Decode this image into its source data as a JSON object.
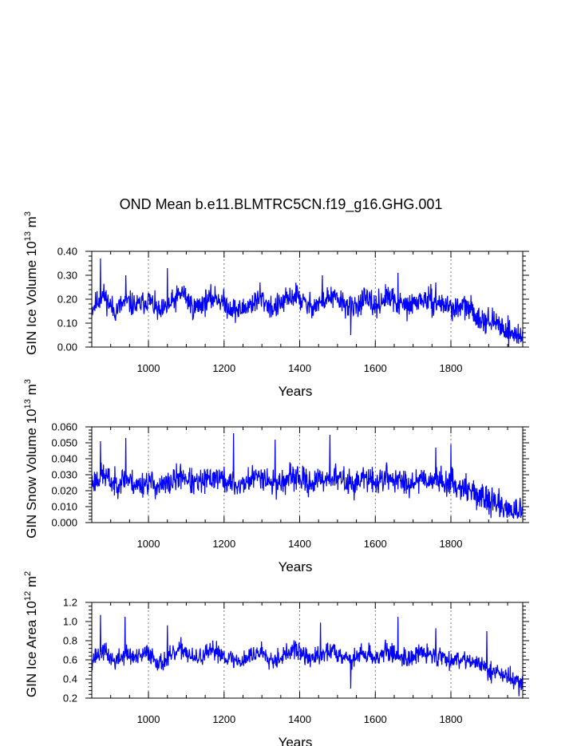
{
  "title": "OND Mean b.e11.BLMTRC5CN.f19_g16.GHG.001",
  "chart_data": [
    {
      "type": "line",
      "title": "OND Mean b.e11.BLMTRC5CN.f19_g16.GHG.001",
      "ylabel": "GIN Ice Volume 10",
      "ylabel_exp": "13",
      "ylabel_unit": "m",
      "ylabel_unit_exp": "3",
      "xlabel": "Years",
      "xlim": [
        850,
        1990
      ],
      "ylim": [
        0.0,
        0.4
      ],
      "xticks": [
        "1000",
        "1200",
        "1400",
        "1600",
        "1800"
      ],
      "yticks": [
        "0.00",
        "0.10",
        "0.20",
        "0.30",
        "0.40"
      ],
      "color": "#0000ff",
      "x_start": 850,
      "x_end": 1990,
      "series": [
        {
          "x_step": 30,
          "values": [
            0.16,
            0.22,
            0.15,
            0.19,
            0.17,
            0.2,
            0.14,
            0.18,
            0.23,
            0.16,
            0.19,
            0.21,
            0.17,
            0.15,
            0.18,
            0.2,
            0.16,
            0.19,
            0.22,
            0.17,
            0.18,
            0.21,
            0.19,
            0.16,
            0.2,
            0.17,
            0.21,
            0.18,
            0.17,
            0.2,
            0.19,
            0.18,
            0.16,
            0.17,
            0.13,
            0.11,
            0.09,
            0.06,
            0.04
          ]
        }
      ],
      "spikes": [
        {
          "x": 873,
          "y": 0.37
        },
        {
          "x": 1050,
          "y": 0.33
        },
        {
          "x": 940,
          "y": 0.3
        },
        {
          "x": 1460,
          "y": 0.3
        },
        {
          "x": 1660,
          "y": 0.31
        },
        {
          "x": 1535,
          "y": 0.05
        },
        {
          "x": 1295,
          "y": 0.27
        },
        {
          "x": 1760,
          "y": 0.27
        },
        {
          "x": 1985,
          "y": 0.02
        }
      ],
      "noise": 0.05,
      "seed": 11
    },
    {
      "type": "line",
      "ylabel": "GIN Snow Volume 10",
      "ylabel_exp": "13",
      "ylabel_unit": "m",
      "ylabel_unit_exp": "3",
      "xlabel": "Years",
      "xlim": [
        850,
        1990
      ],
      "ylim": [
        0.0,
        0.06
      ],
      "xticks": [
        "1000",
        "1200",
        "1400",
        "1600",
        "1800"
      ],
      "yticks": [
        "0.000",
        "0.010",
        "0.020",
        "0.030",
        "0.040",
        "0.050",
        "0.060"
      ],
      "color": "#0000ff",
      "x_start": 850,
      "x_end": 1990,
      "series": [
        {
          "x_step": 30,
          "values": [
            0.025,
            0.03,
            0.024,
            0.028,
            0.023,
            0.026,
            0.022,
            0.025,
            0.03,
            0.024,
            0.026,
            0.029,
            0.025,
            0.023,
            0.027,
            0.03,
            0.024,
            0.026,
            0.029,
            0.025,
            0.026,
            0.029,
            0.027,
            0.024,
            0.028,
            0.025,
            0.029,
            0.026,
            0.025,
            0.028,
            0.027,
            0.026,
            0.024,
            0.022,
            0.017,
            0.014,
            0.011,
            0.008,
            0.006
          ]
        }
      ],
      "spikes": [
        {
          "x": 1225,
          "y": 0.056
        },
        {
          "x": 1480,
          "y": 0.055
        },
        {
          "x": 940,
          "y": 0.053
        },
        {
          "x": 1335,
          "y": 0.052
        },
        {
          "x": 1800,
          "y": 0.049
        },
        {
          "x": 873,
          "y": 0.051
        },
        {
          "x": 1760,
          "y": 0.047
        },
        {
          "x": 1985,
          "y": 0.003
        }
      ],
      "noise": 0.008,
      "seed": 23
    },
    {
      "type": "line",
      "ylabel": "GIN Ice Area 10",
      "ylabel_exp": "12",
      "ylabel_unit": "m",
      "ylabel_unit_exp": "2",
      "xlabel": "Years",
      "xlim": [
        850,
        1990
      ],
      "ylim": [
        0.2,
        1.2
      ],
      "xticks": [
        "1000",
        "1200",
        "1400",
        "1600",
        "1800"
      ],
      "yticks": [
        "0.2",
        "0.4",
        "0.6",
        "0.8",
        "1.0",
        "1.2"
      ],
      "color": "#0000ff",
      "x_start": 850,
      "x_end": 1990,
      "series": [
        {
          "x_step": 30,
          "values": [
            0.6,
            0.7,
            0.58,
            0.66,
            0.61,
            0.68,
            0.56,
            0.63,
            0.72,
            0.6,
            0.65,
            0.7,
            0.62,
            0.58,
            0.64,
            0.69,
            0.6,
            0.65,
            0.71,
            0.62,
            0.63,
            0.7,
            0.66,
            0.6,
            0.68,
            0.62,
            0.69,
            0.64,
            0.62,
            0.67,
            0.65,
            0.63,
            0.6,
            0.62,
            0.55,
            0.5,
            0.46,
            0.4,
            0.36
          ]
        }
      ],
      "spikes": [
        {
          "x": 873,
          "y": 1.07
        },
        {
          "x": 938,
          "y": 1.05
        },
        {
          "x": 1660,
          "y": 1.05
        },
        {
          "x": 1455,
          "y": 0.99
        },
        {
          "x": 1050,
          "y": 0.96
        },
        {
          "x": 1760,
          "y": 0.93
        },
        {
          "x": 1895,
          "y": 0.9
        },
        {
          "x": 1535,
          "y": 0.3
        },
        {
          "x": 1980,
          "y": 0.22
        }
      ],
      "noise": 0.1,
      "seed": 37
    }
  ]
}
